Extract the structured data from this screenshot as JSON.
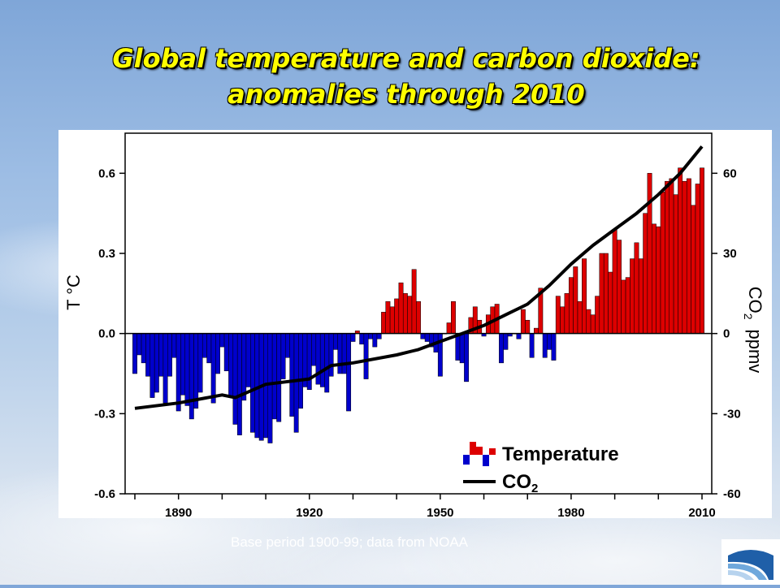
{
  "slide": {
    "title_line1": "Global temperature and carbon dioxide:",
    "title_line2": "anomalies through 2010",
    "footnote": "Base period 1900-99; data from NOAA"
  },
  "colors": {
    "positive_bar": "#dd0000",
    "negative_bar": "#0000cc",
    "co2_line": "#000000",
    "title_text": "#ffff00"
  },
  "logo": {
    "icon": "swoosh-logo-icon"
  },
  "chart_data": {
    "type": "bar",
    "x_range": [
      1880,
      2010
    ],
    "x_ticks": [
      1890,
      1920,
      1950,
      1980,
      2010
    ],
    "y_left": {
      "label": "T °C",
      "range": [
        -0.6,
        0.75
      ],
      "ticks": [
        -0.6,
        -0.3,
        0.0,
        0.3,
        0.6
      ],
      "tick_labels": [
        "-0.6",
        "-0.3",
        "0.0",
        "0.3",
        "0.6"
      ]
    },
    "y_right": {
      "label_main": "CO",
      "label_sub": "2",
      "label_unit": "ppmv",
      "range": [
        -60,
        75
      ],
      "ticks": [
        -60,
        -30,
        0,
        30,
        60
      ],
      "tick_labels": [
        "-60",
        "-30",
        "0",
        "30",
        "60"
      ]
    },
    "grid": false,
    "legend": {
      "placement": "bottom-right",
      "entries": [
        {
          "name": "Temperature",
          "kind": "bars"
        },
        {
          "name_main": "CO",
          "name_sub": "2",
          "kind": "line"
        }
      ]
    },
    "series": [
      {
        "kind": "bars",
        "years": [
          1880,
          1881,
          1882,
          1883,
          1884,
          1885,
          1886,
          1887,
          1888,
          1889,
          1890,
          1891,
          1892,
          1893,
          1894,
          1895,
          1896,
          1897,
          1898,
          1899,
          1900,
          1901,
          1902,
          1903,
          1904,
          1905,
          1906,
          1907,
          1908,
          1909,
          1910,
          1911,
          1912,
          1913,
          1914,
          1915,
          1916,
          1917,
          1918,
          1919,
          1920,
          1921,
          1922,
          1923,
          1924,
          1925,
          1926,
          1927,
          1928,
          1929,
          1930,
          1931,
          1932,
          1933,
          1934,
          1935,
          1936,
          1937,
          1938,
          1939,
          1940,
          1941,
          1942,
          1943,
          1944,
          1945,
          1946,
          1947,
          1948,
          1949,
          1950,
          1951,
          1952,
          1953,
          1954,
          1955,
          1956,
          1957,
          1958,
          1959,
          1960,
          1961,
          1962,
          1963,
          1964,
          1965,
          1966,
          1967,
          1968,
          1969,
          1970,
          1971,
          1972,
          1973,
          1974,
          1975,
          1976,
          1977,
          1978,
          1979,
          1980,
          1981,
          1982,
          1983,
          1984,
          1985,
          1986,
          1987,
          1988,
          1989,
          1990,
          1991,
          1992,
          1993,
          1994,
          1995,
          1996,
          1997,
          1998,
          1999,
          2000,
          2001,
          2002,
          2003,
          2004,
          2005,
          2006,
          2007,
          2008,
          2009,
          2010
        ],
        "values": [
          -0.15,
          -0.08,
          -0.11,
          -0.16,
          -0.24,
          -0.22,
          -0.16,
          -0.26,
          -0.16,
          -0.09,
          -0.29,
          -0.23,
          -0.27,
          -0.32,
          -0.28,
          -0.22,
          -0.09,
          -0.11,
          -0.26,
          -0.15,
          -0.05,
          -0.14,
          -0.24,
          -0.34,
          -0.38,
          -0.25,
          -0.2,
          -0.37,
          -0.39,
          -0.4,
          -0.39,
          -0.41,
          -0.32,
          -0.33,
          -0.17,
          -0.09,
          -0.31,
          -0.37,
          -0.28,
          -0.2,
          -0.21,
          -0.12,
          -0.19,
          -0.2,
          -0.22,
          -0.16,
          -0.06,
          -0.15,
          -0.15,
          -0.29,
          -0.03,
          0.01,
          -0.04,
          -0.17,
          -0.02,
          -0.05,
          -0.02,
          0.08,
          0.12,
          0.1,
          0.13,
          0.19,
          0.15,
          0.14,
          0.24,
          0.12,
          -0.02,
          -0.03,
          -0.05,
          -0.07,
          -0.16,
          0.0,
          0.04,
          0.12,
          -0.1,
          -0.11,
          -0.18,
          0.06,
          0.1,
          0.05,
          -0.01,
          0.07,
          0.1,
          0.11,
          -0.11,
          -0.06,
          -0.01,
          0.0,
          -0.02,
          0.09,
          0.05,
          -0.09,
          0.02,
          0.17,
          -0.09,
          -0.06,
          -0.1,
          0.14,
          0.1,
          0.15,
          0.21,
          0.25,
          0.12,
          0.28,
          0.09,
          0.07,
          0.14,
          0.3,
          0.3,
          0.23,
          0.39,
          0.35,
          0.2,
          0.21,
          0.28,
          0.34,
          0.28,
          0.45,
          0.6,
          0.41,
          0.4,
          0.53,
          0.57,
          0.58,
          0.52,
          0.62,
          0.57,
          0.58,
          0.48,
          0.56,
          0.62
        ]
      },
      {
        "kind": "line",
        "name_main": "CO",
        "name_sub": "2",
        "years": [
          1880,
          1890,
          1900,
          1903,
          1910,
          1920,
          1925,
          1930,
          1940,
          1945,
          1950,
          1955,
          1960,
          1965,
          1970,
          1975,
          1980,
          1985,
          1990,
          1995,
          2000,
          2005,
          2010
        ],
        "values": [
          -28,
          -26,
          -23,
          -24,
          -19,
          -17,
          -12,
          -11,
          -8,
          -6,
          -3,
          0,
          3,
          7,
          11,
          18,
          26,
          33,
          39,
          45,
          52,
          60,
          70
        ]
      }
    ]
  }
}
